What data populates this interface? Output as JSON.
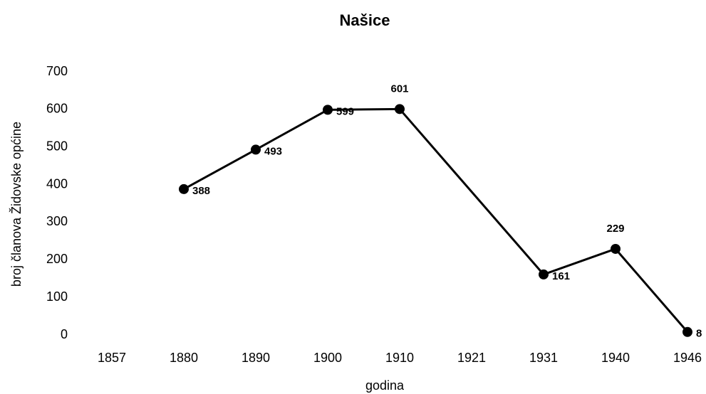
{
  "chart_data": {
    "type": "line",
    "title": "Našice",
    "x_label": "godina",
    "y_label": "broj članova Židovske općine",
    "categories": [
      "1857",
      "1880",
      "1890",
      "1900",
      "1910",
      "1921",
      "1931",
      "1940",
      "1946"
    ],
    "series": [
      {
        "name": "Našice",
        "color": "#000000",
        "values": [
          null,
          388,
          493,
          599,
          601,
          null,
          161,
          229,
          8
        ]
      }
    ],
    "ylim": [
      0,
      700
    ],
    "yticks": [
      0,
      100,
      200,
      300,
      400,
      500,
      600,
      700
    ],
    "grid": false
  }
}
